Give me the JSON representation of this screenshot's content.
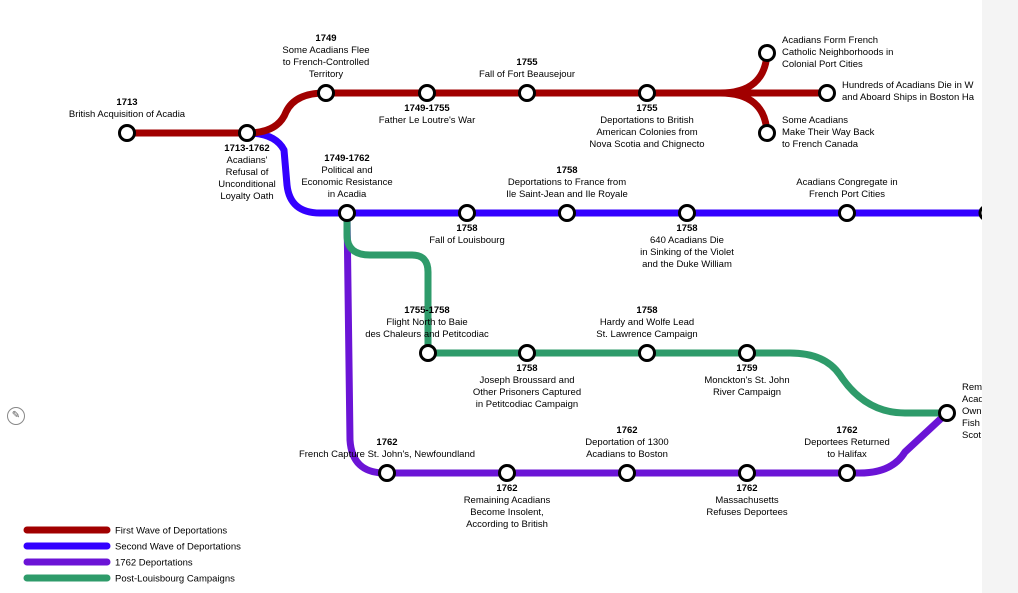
{
  "colors": {
    "first": "#a10000",
    "second": "#3300ff",
    "y1762": "#6b14d6",
    "post": "#2e9b6a",
    "station_stroke": "#000000",
    "station_fill": "#ffffff"
  },
  "legend": [
    {
      "id": "first",
      "label": "First Wave of Deportations"
    },
    {
      "id": "second",
      "label": "Second Wave of Deportations"
    },
    {
      "id": "y1762",
      "label": "1762 Deportations"
    },
    {
      "id": "post",
      "label": "Post-Louisbourg Campaigns"
    }
  ],
  "stations": [
    {
      "id": "s1713",
      "year": "1713",
      "text": [
        "British Acquisition of Acadia"
      ]
    },
    {
      "id": "s1713b",
      "year": "1713-1762",
      "text": [
        "Acadians'",
        "Refusal of",
        "Unconditional",
        "Loyalty Oath"
      ]
    },
    {
      "id": "s1749a",
      "year": "1749",
      "text": [
        "Some Acadians Flee",
        "to French-Controlled",
        "Territory"
      ]
    },
    {
      "id": "s1749b",
      "year": "1749-1755",
      "text": [
        "Father Le Loutre's War"
      ]
    },
    {
      "id": "s1755a",
      "year": "1755",
      "text": [
        "Fall of Fort Beausejour"
      ]
    },
    {
      "id": "s1755b",
      "year": "1755",
      "text": [
        "Deportations to British",
        "American Colonies from",
        "Nova Scotia and Chignecto"
      ]
    },
    {
      "id": "sFrench",
      "year": "",
      "text": [
        "Acadians Form French",
        "Catholic Neighborhoods in",
        "Colonial Port Cities"
      ]
    },
    {
      "id": "sBoston",
      "year": "",
      "text": [
        "Hundreds of Acadians Die in W",
        "and Aboard Ships in Boston Ha"
      ]
    },
    {
      "id": "sCanada",
      "year": "",
      "text": [
        "Some Acadians",
        "Make Their Way Back",
        "to French Canada"
      ]
    },
    {
      "id": "s1749c",
      "year": "1749-1762",
      "text": [
        "Political and",
        "Economic Resistance",
        "in Acadia"
      ]
    },
    {
      "id": "s1758a",
      "year": "1758",
      "text": [
        "Fall of Louisbourg"
      ]
    },
    {
      "id": "s1758b",
      "year": "1758",
      "text": [
        "Deportations to France from",
        "Ile Saint-Jean and Ile Royale"
      ]
    },
    {
      "id": "s1758c",
      "year": "1758",
      "text": [
        "640 Acadians Die",
        "in Sinking of the Violet",
        "and the Duke William"
      ]
    },
    {
      "id": "sCongregate",
      "year": "",
      "text": [
        "Acadians Congregate in",
        "French Port Cities"
      ]
    },
    {
      "id": "s1755c",
      "year": "1755-1758",
      "text": [
        "Flight North to Baie",
        "des Chaleurs and Petitcodiac"
      ]
    },
    {
      "id": "s1758d",
      "year": "1758",
      "text": [
        "Joseph Broussard and",
        "Other Prisoners Captured",
        "in Petitcodiac Campaign"
      ]
    },
    {
      "id": "s1758e",
      "year": "1758",
      "text": [
        "Hardy and Wolfe Lead",
        "St. Lawrence Campaign"
      ]
    },
    {
      "id": "s1759",
      "year": "1759",
      "text": [
        "Monckton's St. John",
        "River Campaign"
      ]
    },
    {
      "id": "sRem",
      "year": "",
      "text": [
        "Rem",
        "Acad",
        "Own",
        "Fish",
        "Scot"
      ]
    },
    {
      "id": "s1762a",
      "year": "1762",
      "text": [
        "French Capture St. John's, Newfoundland"
      ]
    },
    {
      "id": "s1762b",
      "year": "1762",
      "text": [
        "Remaining Acadians",
        "Become Insolent,",
        "According to British"
      ]
    },
    {
      "id": "s1762c",
      "year": "1762",
      "text": [
        "Deportation of 1300",
        "Acadians to Boston"
      ]
    },
    {
      "id": "s1762d",
      "year": "1762",
      "text": [
        "Massachusetts",
        "Refuses Deportees"
      ]
    },
    {
      "id": "s1762e",
      "year": "1762",
      "text": [
        "Deportees Returned",
        "to Halifax"
      ]
    }
  ],
  "edit_icon": "pencil-icon"
}
